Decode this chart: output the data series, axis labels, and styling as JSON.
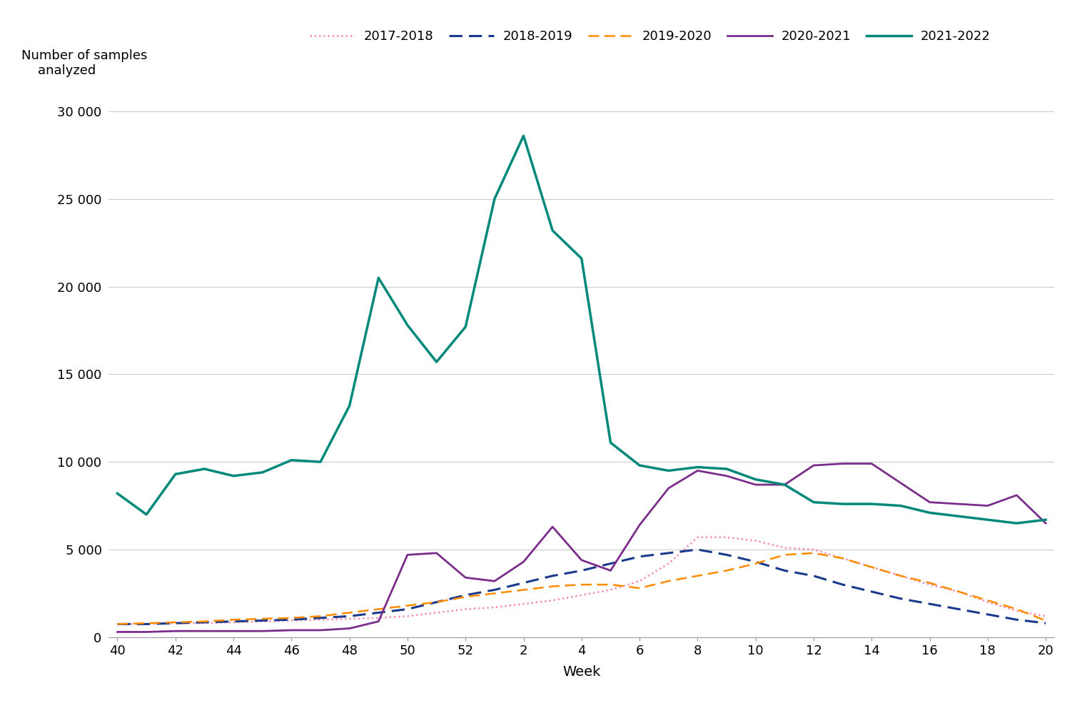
{
  "ylabel": "Number of samples\nanalyzed",
  "xlabel": "Week",
  "series": {
    "2017-2018": {
      "color": "#f48fb1",
      "linestyle": "dotted",
      "linewidth": 1.8,
      "weeks": [
        40,
        41,
        42,
        43,
        44,
        45,
        46,
        47,
        48,
        49,
        50,
        51,
        52,
        1,
        2,
        3,
        4,
        5,
        6,
        7,
        8,
        9,
        10,
        11,
        12,
        13,
        14,
        15,
        16,
        17,
        18,
        19,
        20
      ],
      "values": [
        750,
        750,
        800,
        800,
        850,
        900,
        950,
        1000,
        1050,
        1100,
        1200,
        1400,
        1600,
        1700,
        1900,
        2100,
        2400,
        2700,
        3200,
        4200,
        5700,
        5700,
        5500,
        5100,
        5000,
        4500,
        4000,
        3500,
        3000,
        2600,
        2000,
        1500,
        1200
      ]
    },
    "2018-2019": {
      "color": "#1a3a8c",
      "linestyle": "dashed",
      "linewidth": 2.2,
      "weeks": [
        40,
        41,
        42,
        43,
        44,
        45,
        46,
        47,
        48,
        49,
        50,
        51,
        52,
        1,
        2,
        3,
        4,
        5,
        6,
        7,
        8,
        9,
        10,
        11,
        12,
        13,
        14,
        15,
        16,
        17,
        18,
        19,
        20
      ],
      "values": [
        750,
        750,
        800,
        850,
        900,
        950,
        1000,
        1100,
        1200,
        1400,
        1600,
        2000,
        2400,
        2700,
        3100,
        3500,
        3800,
        4200,
        4600,
        4800,
        5000,
        4700,
        4300,
        3800,
        3500,
        3000,
        2600,
        2200,
        1900,
        1600,
        1300,
        1000,
        800
      ]
    },
    "2019-2020": {
      "color": "#ff8c00",
      "linestyle": "dashed",
      "linewidth": 1.8,
      "weeks": [
        40,
        41,
        42,
        43,
        44,
        45,
        46,
        47,
        48,
        49,
        50,
        51,
        52,
        1,
        2,
        3,
        4,
        5,
        6,
        7,
        8,
        9,
        10,
        11,
        12,
        13,
        14,
        15,
        16,
        17,
        18,
        19,
        20
      ],
      "values": [
        750,
        800,
        850,
        900,
        1000,
        1050,
        1100,
        1200,
        1400,
        1600,
        1800,
        2000,
        2300,
        2500,
        2700,
        2900,
        3000,
        3000,
        2800,
        3200,
        3500,
        3800,
        4200,
        4700,
        4800,
        4500,
        4000,
        3500,
        3100,
        2600,
        2100,
        1600,
        950
      ]
    },
    "2020-2021": {
      "color": "#7b2d8b",
      "linestyle": "solid",
      "linewidth": 2.0,
      "weeks": [
        40,
        41,
        42,
        43,
        44,
        45,
        46,
        47,
        48,
        49,
        50,
        51,
        52,
        1,
        2,
        3,
        4,
        5,
        6,
        7,
        8,
        9,
        10,
        11,
        12,
        13,
        14,
        15,
        16,
        17,
        18,
        19,
        20
      ],
      "values": [
        300,
        300,
        350,
        350,
        350,
        350,
        400,
        400,
        500,
        900,
        4700,
        4800,
        3400,
        3200,
        4300,
        6300,
        4400,
        3800,
        6400,
        8500,
        9500,
        9200,
        8700,
        8700,
        9800,
        9900,
        9900,
        8800,
        7700,
        7600,
        7500,
        8100,
        6500
      ]
    },
    "2021-2022": {
      "color": "#00897b",
      "linestyle": "solid",
      "linewidth": 2.5,
      "weeks": [
        40,
        41,
        42,
        43,
        44,
        45,
        46,
        47,
        48,
        49,
        50,
        51,
        52,
        1,
        2,
        3,
        4,
        5,
        6,
        7,
        8,
        9,
        10,
        11,
        12,
        13,
        14,
        15,
        16,
        17,
        18,
        19,
        20
      ],
      "values": [
        8200,
        7000,
        9300,
        9600,
        9200,
        9400,
        10100,
        10000,
        13200,
        20500,
        17800,
        15700,
        17700,
        25000,
        28600,
        23200,
        21600,
        11100,
        9800,
        9500,
        9700,
        9600,
        9000,
        8700,
        7700,
        7600,
        7600,
        7500,
        7100,
        6900,
        6700,
        6500,
        6700
      ]
    }
  },
  "xtick_labels": [
    "40",
    "42",
    "44",
    "46",
    "48",
    "50",
    "52",
    "2",
    "4",
    "6",
    "8",
    "10",
    "12",
    "14",
    "16",
    "18",
    "20"
  ],
  "ytick_positions": [
    0,
    5000,
    10000,
    15000,
    20000,
    25000,
    30000
  ],
  "ytick_labels": [
    "0",
    "5 000",
    "10 000",
    "15 000",
    "20 000",
    "25 000",
    "30 000"
  ],
  "ylim": [
    0,
    31500
  ],
  "legend_order": [
    "2017-2018",
    "2018-2019",
    "2019-2020",
    "2020-2021",
    "2021-2022"
  ]
}
